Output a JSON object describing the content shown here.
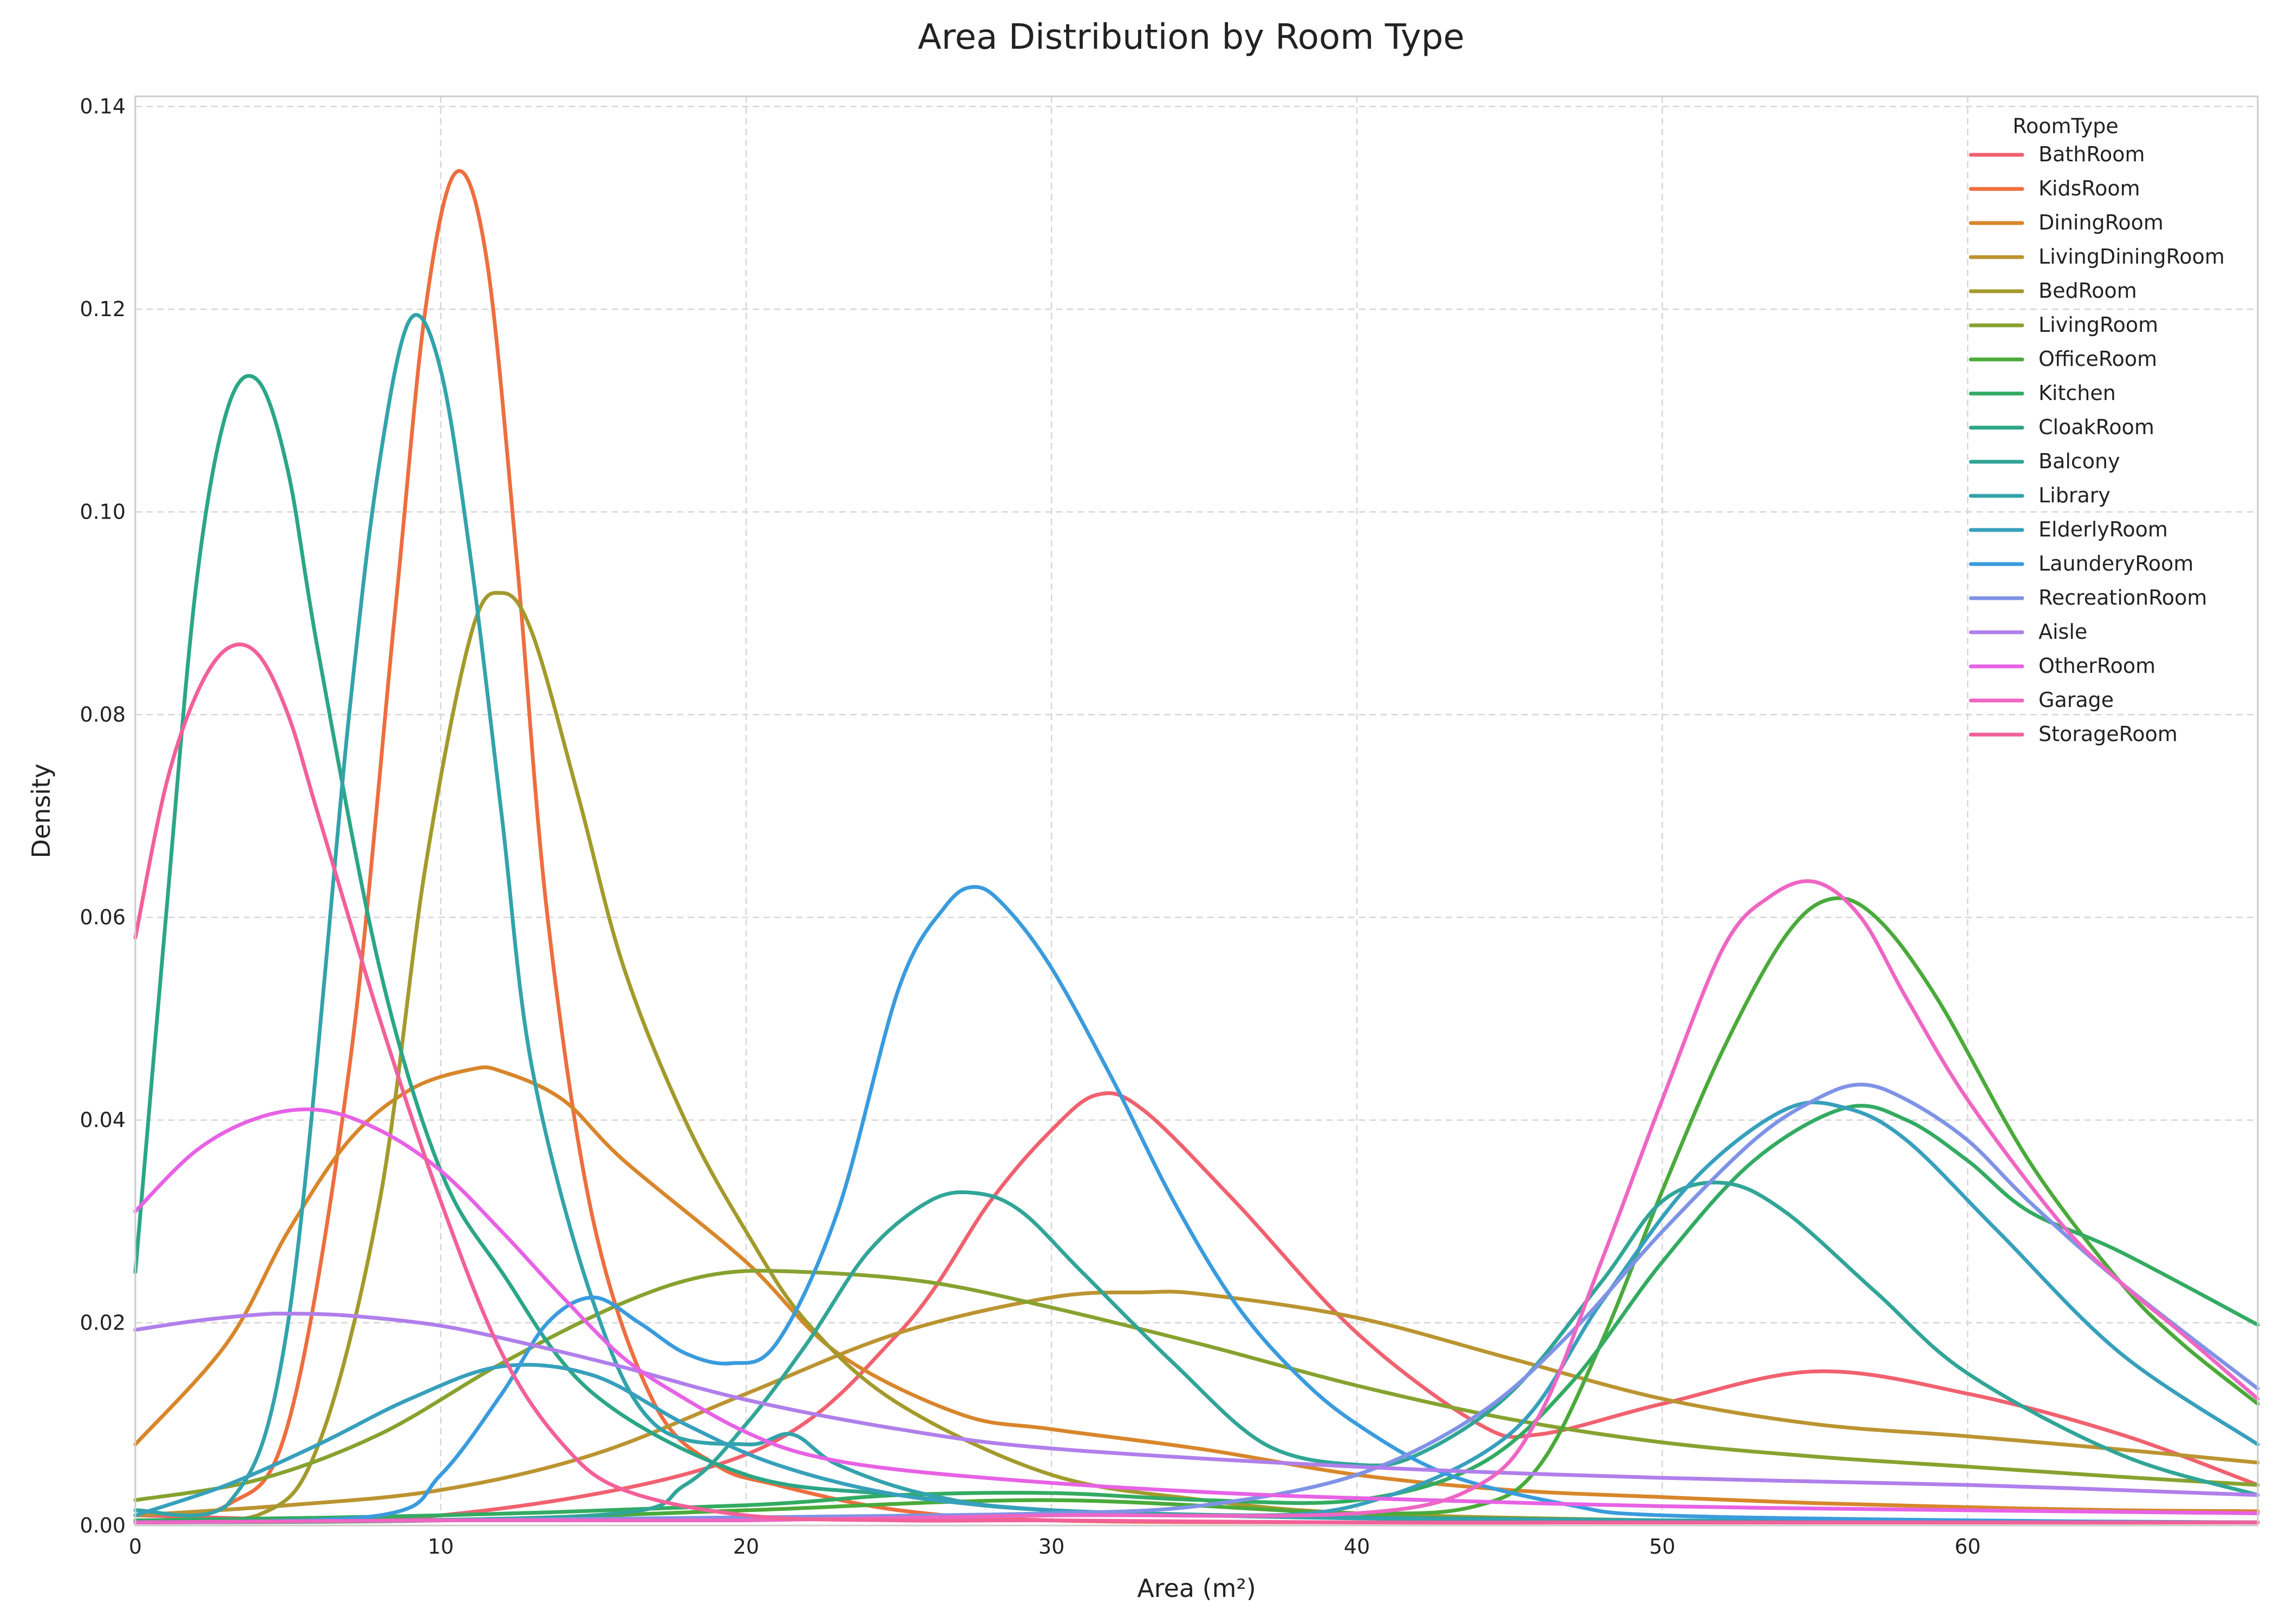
{
  "chart_data": {
    "type": "line",
    "title": "Area Distribution by Room Type",
    "xlabel": "Area (m²)",
    "ylabel": "Density",
    "xlim": [
      0,
      69.5
    ],
    "ylim": [
      0,
      0.141
    ],
    "x_ticks": [
      0,
      10,
      20,
      30,
      40,
      50,
      60
    ],
    "x_tick_labels": [
      "0",
      "10",
      "20",
      "30",
      "40",
      "50",
      "60"
    ],
    "y_ticks": [
      0,
      0.02,
      0.04,
      0.06,
      0.08,
      0.1,
      0.12,
      0.14
    ],
    "y_tick_labels": [
      "0.00",
      "0.02",
      "0.04",
      "0.06",
      "0.08",
      "0.10",
      "0.12",
      "0.14"
    ],
    "grid": true,
    "legend": {
      "title": "RoomType",
      "placement": "top-right"
    },
    "series": [
      {
        "name": "BathRoom",
        "color": "#f0616f",
        "x": [
          0,
          10,
          20,
          25,
          28,
          30,
          31.5,
          33,
          36,
          40,
          44,
          46,
          50,
          55,
          60,
          65,
          69.5
        ],
        "y": [
          0.001,
          0.001,
          0.007,
          0.019,
          0.032,
          0.039,
          0.0425,
          0.041,
          0.032,
          0.019,
          0.01,
          0.009,
          0.012,
          0.0152,
          0.013,
          0.009,
          0.004
        ]
      },
      {
        "name": "KidsRoom",
        "color": "#ed6e3f",
        "x": [
          0,
          3,
          5,
          7,
          8.5,
          9.5,
          10.5,
          11.5,
          12.5,
          13.5,
          15,
          17,
          19,
          21,
          25,
          30,
          40,
          50,
          60,
          69.5
        ],
        "y": [
          0.0003,
          0.002,
          0.01,
          0.045,
          0.09,
          0.12,
          0.1335,
          0.125,
          0.095,
          0.06,
          0.03,
          0.012,
          0.006,
          0.004,
          0.0015,
          0.0005,
          0.0003,
          0.0003,
          0.0003,
          0.0003
        ]
      },
      {
        "name": "DiningRoom",
        "color": "#d8862b",
        "x": [
          0,
          3,
          5,
          7,
          9,
          11,
          12,
          14,
          16,
          20,
          23,
          27,
          30,
          35,
          40,
          45,
          50,
          55,
          60,
          65,
          69.5
        ],
        "y": [
          0.008,
          0.018,
          0.029,
          0.038,
          0.043,
          0.045,
          0.0448,
          0.042,
          0.036,
          0.026,
          0.017,
          0.011,
          0.0095,
          0.0075,
          0.005,
          0.0035,
          0.0028,
          0.0022,
          0.0018,
          0.0015,
          0.0014
        ]
      },
      {
        "name": "LivingDiningRoom",
        "color": "#bb9431",
        "x": [
          0,
          5,
          10,
          15,
          20,
          25,
          30,
          33,
          35,
          40,
          45,
          50,
          55,
          60,
          65,
          69.5
        ],
        "y": [
          0.001,
          0.002,
          0.0035,
          0.007,
          0.013,
          0.019,
          0.0225,
          0.023,
          0.0228,
          0.0205,
          0.0165,
          0.0125,
          0.01,
          0.0088,
          0.0075,
          0.0062
        ]
      },
      {
        "name": "BedRoom",
        "color": "#a39a2c",
        "x": [
          0,
          4,
          6,
          8,
          9.5,
          11,
          12,
          13,
          14.5,
          16,
          18,
          20,
          22,
          25,
          30,
          35,
          40,
          50,
          60,
          69.5
        ],
        "y": [
          0.0003,
          0.001,
          0.008,
          0.032,
          0.065,
          0.088,
          0.092,
          0.088,
          0.072,
          0.055,
          0.04,
          0.029,
          0.02,
          0.012,
          0.005,
          0.0025,
          0.0012,
          0.0005,
          0.0003,
          0.0003
        ]
      },
      {
        "name": "LivingRoom",
        "color": "#87a22f",
        "x": [
          0,
          4,
          8,
          12,
          16,
          19,
          22,
          26,
          30,
          35,
          40,
          45,
          50,
          55,
          60,
          65,
          69.5
        ],
        "y": [
          0.0025,
          0.0045,
          0.009,
          0.016,
          0.022,
          0.0248,
          0.025,
          0.024,
          0.0215,
          0.0178,
          0.0138,
          0.0105,
          0.0082,
          0.0068,
          0.0058,
          0.0048,
          0.004
        ]
      },
      {
        "name": "OfficeRoom",
        "color": "#4aaa3a",
        "x": [
          0,
          10,
          20,
          30,
          40,
          44,
          46,
          48,
          50,
          52,
          54,
          55.5,
          57,
          59,
          62,
          65,
          67,
          69.5
        ],
        "y": [
          0.0003,
          0.0005,
          0.0015,
          0.0025,
          0.0012,
          0.002,
          0.006,
          0.018,
          0.033,
          0.047,
          0.058,
          0.0618,
          0.06,
          0.052,
          0.036,
          0.024,
          0.018,
          0.012
        ]
      },
      {
        "name": "Kitchen",
        "color": "#33ab62",
        "x": [
          0,
          10,
          20,
          25,
          30,
          35,
          40,
          44,
          47,
          50,
          53,
          56,
          58,
          60,
          62,
          65,
          69.5
        ],
        "y": [
          0.0005,
          0.001,
          0.002,
          0.003,
          0.0032,
          0.0025,
          0.0025,
          0.006,
          0.014,
          0.026,
          0.036,
          0.0412,
          0.04,
          0.036,
          0.031,
          0.027,
          0.0198
        ]
      },
      {
        "name": "CloakRoom",
        "color": "#2ba686",
        "x": [
          0,
          1,
          2,
          3,
          4,
          5,
          6,
          8,
          10,
          12,
          15,
          20,
          25,
          30,
          40,
          50,
          60,
          69.5
        ],
        "y": [
          0.025,
          0.06,
          0.093,
          0.11,
          0.113,
          0.104,
          0.086,
          0.055,
          0.035,
          0.025,
          0.013,
          0.005,
          0.003,
          0.0015,
          0.0008,
          0.0005,
          0.0004,
          0.0003
        ]
      },
      {
        "name": "Balcony",
        "color": "#31a597",
        "x": [
          0,
          15,
          18,
          20,
          22,
          24,
          26,
          27.5,
          29,
          31,
          34,
          37,
          40,
          42,
          45,
          48,
          50,
          52,
          54,
          57,
          60,
          65,
          69.5
        ],
        "y": [
          0.0003,
          0.001,
          0.004,
          0.01,
          0.018,
          0.027,
          0.032,
          0.0328,
          0.031,
          0.025,
          0.016,
          0.008,
          0.006,
          0.007,
          0.013,
          0.024,
          0.032,
          0.0338,
          0.031,
          0.023,
          0.015,
          0.007,
          0.003
        ]
      },
      {
        "name": "Library",
        "color": "#33a3ab",
        "x": [
          0,
          3,
          5,
          7,
          8,
          9,
          10,
          11,
          12,
          13,
          15,
          17,
          20,
          21.5,
          23,
          26,
          30,
          40,
          50,
          60,
          69.5
        ],
        "y": [
          0.0015,
          0.002,
          0.02,
          0.08,
          0.105,
          0.119,
          0.114,
          0.095,
          0.07,
          0.045,
          0.022,
          0.01,
          0.008,
          0.009,
          0.006,
          0.003,
          0.0015,
          0.0007,
          0.0005,
          0.0004,
          0.0003
        ]
      },
      {
        "name": "ElderlyRoom",
        "color": "#37a0bc",
        "x": [
          0,
          3,
          6,
          9,
          12,
          15,
          18,
          21,
          25,
          30,
          35,
          40,
          45,
          48,
          51,
          54,
          56,
          58,
          61,
          65,
          69.5
        ],
        "y": [
          0.001,
          0.004,
          0.008,
          0.0125,
          0.0157,
          0.0148,
          0.01,
          0.006,
          0.003,
          0.0015,
          0.001,
          0.002,
          0.009,
          0.022,
          0.034,
          0.041,
          0.0412,
          0.038,
          0.029,
          0.017,
          0.008
        ]
      },
      {
        "name": "LaunderyRoom",
        "color": "#3a9bdd",
        "x": [
          0,
          8,
          10,
          12,
          13.5,
          15,
          16.5,
          18,
          19.5,
          21,
          23,
          25,
          26.5,
          27.5,
          28.5,
          30,
          32,
          34,
          36,
          38,
          40,
          43,
          47,
          50,
          60,
          69.5
        ],
        "y": [
          0.0003,
          0.001,
          0.005,
          0.013,
          0.02,
          0.0225,
          0.02,
          0.017,
          0.016,
          0.018,
          0.031,
          0.053,
          0.061,
          0.063,
          0.061,
          0.055,
          0.044,
          0.032,
          0.022,
          0.015,
          0.01,
          0.005,
          0.002,
          0.001,
          0.0005,
          0.0003
        ]
      },
      {
        "name": "RecreationRoom",
        "color": "#7f93e6",
        "x": [
          0,
          10,
          20,
          30,
          35,
          40,
          44,
          47,
          50,
          53,
          55,
          56.5,
          58,
          60,
          62,
          65,
          69.5
        ],
        "y": [
          0.0003,
          0.0005,
          0.0008,
          0.0012,
          0.002,
          0.005,
          0.011,
          0.019,
          0.029,
          0.038,
          0.042,
          0.0435,
          0.042,
          0.038,
          0.032,
          0.024,
          0.0135
        ]
      },
      {
        "name": "Aisle",
        "color": "#b07feb",
        "x": [
          0,
          2,
          4,
          5,
          7,
          10,
          13,
          16,
          20,
          25,
          30,
          40,
          50,
          60,
          69.5
        ],
        "y": [
          0.0193,
          0.0202,
          0.0208,
          0.0209,
          0.0207,
          0.0197,
          0.0178,
          0.0156,
          0.0124,
          0.0095,
          0.0076,
          0.0058,
          0.0047,
          0.004,
          0.003
        ]
      },
      {
        "name": "OtherRoom",
        "color": "#e762e5",
        "x": [
          0,
          2,
          4,
          6,
          8,
          10,
          12,
          14,
          16,
          18,
          20,
          22,
          25,
          30,
          35,
          40,
          50,
          60,
          69.5
        ],
        "y": [
          0.031,
          0.037,
          0.0402,
          0.041,
          0.039,
          0.035,
          0.029,
          0.0225,
          0.0165,
          0.0125,
          0.0092,
          0.007,
          0.0055,
          0.0042,
          0.0033,
          0.0027,
          0.0019,
          0.0015,
          0.0012
        ]
      },
      {
        "name": "Garage",
        "color": "#ee66c3",
        "x": [
          0,
          10,
          20,
          30,
          40,
          44,
          46,
          48,
          50,
          52,
          53.5,
          55,
          56.5,
          58,
          60,
          63,
          65,
          67,
          69.5
        ],
        "y": [
          0.0003,
          0.0005,
          0.0005,
          0.001,
          0.0012,
          0.004,
          0.011,
          0.026,
          0.042,
          0.057,
          0.062,
          0.0635,
          0.06,
          0.052,
          0.042,
          0.03,
          0.024,
          0.019,
          0.0125
        ]
      },
      {
        "name": "StorageRoom",
        "color": "#f2609a",
        "x": [
          0,
          1,
          2,
          3,
          4,
          5,
          6,
          8,
          10,
          12,
          14,
          16,
          20,
          25,
          30,
          40,
          50,
          60,
          69.5
        ],
        "y": [
          0.058,
          0.073,
          0.082,
          0.0865,
          0.086,
          0.08,
          0.07,
          0.05,
          0.032,
          0.017,
          0.008,
          0.0035,
          0.001,
          0.0005,
          0.0005,
          0.0003,
          0.0003,
          0.0003,
          0.0003
        ]
      }
    ]
  }
}
